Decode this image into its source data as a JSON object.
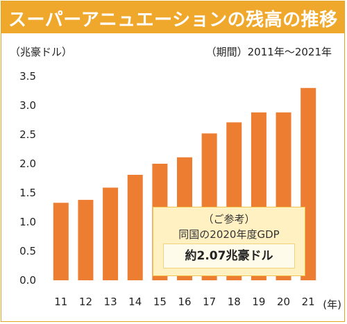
{
  "header": {
    "title": "スーパーアニュエーションの残高の推移"
  },
  "unit_label": "（兆豪ドル）",
  "period_label": "（期間）2011年～2021年",
  "note": {
    "line1": "（ご参考）",
    "line2": "同国の2020年度GDP",
    "value_text": "約2.07兆豪ドル"
  },
  "colors": {
    "bar": "#ed7d31",
    "title_bar": "#f0a82c",
    "note_bg": "#fff1c2"
  },
  "chart_data": {
    "type": "bar",
    "categories": [
      "11",
      "12",
      "13",
      "14",
      "15",
      "16",
      "17",
      "18",
      "19",
      "20",
      "21"
    ],
    "values": [
      1.33,
      1.38,
      1.59,
      1.81,
      2.0,
      2.11,
      2.52,
      2.71,
      2.88,
      2.88,
      3.3
    ],
    "ylim": [
      0,
      3.5
    ],
    "yticks": [
      "0.0",
      "0.5",
      "1.0",
      "1.5",
      "2.0",
      "2.5",
      "3.0",
      "3.5"
    ],
    "xlabel_suffix": "(年)",
    "grid": false
  }
}
